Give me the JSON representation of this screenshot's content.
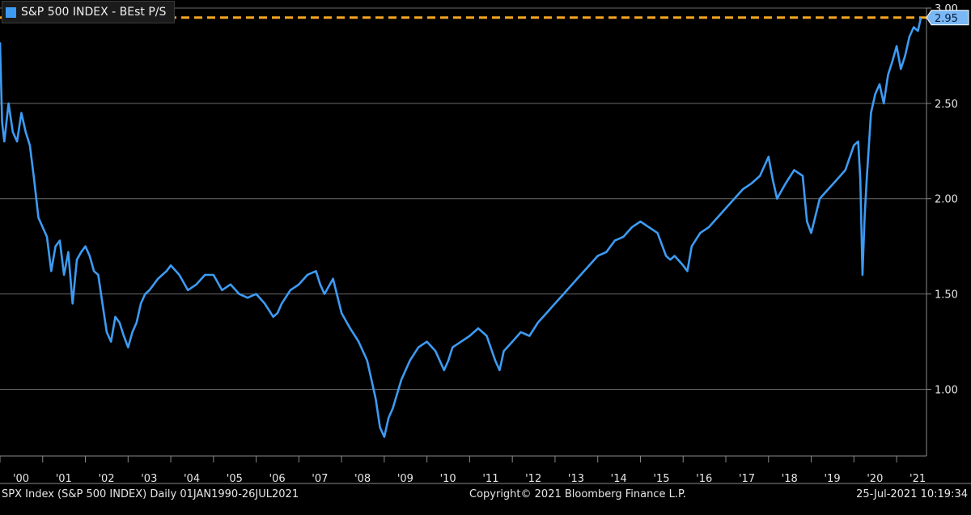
{
  "legend": {
    "label": "S&P 500 INDEX - BEst P/S"
  },
  "footer": {
    "left": "SPX Index (S&P 500 INDEX)  Daily 01JAN1990-26JUL2021",
    "center": "Copyright© 2021 Bloomberg Finance L.P.",
    "right": "25-Jul-2021 10:19:34"
  },
  "colors": {
    "series": "#3d9bf3",
    "reference_line": "#f5a623",
    "grid": "#6a6a6a",
    "background": "#000000"
  },
  "chart_data": {
    "type": "line",
    "title": "",
    "xlabel": "",
    "ylabel": "",
    "ylim": [
      0.65,
      3.0
    ],
    "xlim": [
      2000.0,
      2021.7
    ],
    "grid": true,
    "y_axis_side": "right",
    "yticks": [
      1.0,
      1.5,
      2.0,
      2.5,
      3.0
    ],
    "ytick_labels": [
      "1.00",
      "1.50",
      "2.00",
      "2.50",
      "3.00"
    ],
    "xticks": [
      2000,
      2001,
      2002,
      2003,
      2004,
      2005,
      2006,
      2007,
      2008,
      2009,
      2010,
      2011,
      2012,
      2013,
      2014,
      2015,
      2016,
      2017,
      2018,
      2019,
      2020,
      2021
    ],
    "xtick_labels": [
      "'00",
      "'01",
      "'02",
      "'03",
      "'04",
      "'05",
      "'06",
      "'07",
      "'08",
      "'09",
      "'10",
      "'11",
      "'12",
      "'13",
      "'14",
      "'15",
      "'16",
      "'17",
      "'18",
      "'19",
      "'20",
      "'21"
    ],
    "last_value_label": "2.95",
    "reference_line": {
      "value": 2.95,
      "style": "dashed"
    },
    "series": [
      {
        "name": "S&P 500 INDEX - BEst P/S",
        "x": [
          2000.0,
          2000.05,
          2000.1,
          2000.2,
          2000.3,
          2000.4,
          2000.5,
          2000.6,
          2000.7,
          2000.8,
          2000.9,
          2001.0,
          2001.1,
          2001.2,
          2001.3,
          2001.4,
          2001.5,
          2001.6,
          2001.7,
          2001.8,
          2001.9,
          2002.0,
          2002.1,
          2002.2,
          2002.3,
          2002.4,
          2002.5,
          2002.6,
          2002.7,
          2002.8,
          2002.9,
          2003.0,
          2003.1,
          2003.2,
          2003.3,
          2003.4,
          2003.5,
          2003.6,
          2003.7,
          2003.8,
          2003.9,
          2004.0,
          2004.2,
          2004.4,
          2004.6,
          2004.8,
          2005.0,
          2005.2,
          2005.4,
          2005.6,
          2005.8,
          2006.0,
          2006.2,
          2006.4,
          2006.5,
          2006.6,
          2006.8,
          2007.0,
          2007.2,
          2007.4,
          2007.5,
          2007.6,
          2007.8,
          2008.0,
          2008.2,
          2008.4,
          2008.6,
          2008.8,
          2008.9,
          2009.0,
          2009.1,
          2009.2,
          2009.4,
          2009.6,
          2009.8,
          2010.0,
          2010.2,
          2010.4,
          2010.5,
          2010.6,
          2010.8,
          2011.0,
          2011.2,
          2011.4,
          2011.6,
          2011.7,
          2011.8,
          2012.0,
          2012.2,
          2012.4,
          2012.6,
          2012.8,
          2013.0,
          2013.2,
          2013.4,
          2013.6,
          2013.8,
          2014.0,
          2014.2,
          2014.4,
          2014.6,
          2014.8,
          2015.0,
          2015.2,
          2015.4,
          2015.6,
          2015.7,
          2015.8,
          2016.0,
          2016.1,
          2016.2,
          2016.4,
          2016.6,
          2016.8,
          2017.0,
          2017.2,
          2017.4,
          2017.6,
          2017.8,
          2018.0,
          2018.1,
          2018.2,
          2018.4,
          2018.6,
          2018.8,
          2018.9,
          2019.0,
          2019.2,
          2019.4,
          2019.6,
          2019.8,
          2020.0,
          2020.1,
          2020.15,
          2020.2,
          2020.25,
          2020.3,
          2020.4,
          2020.5,
          2020.6,
          2020.7,
          2020.8,
          2020.9,
          2021.0,
          2021.1,
          2021.2,
          2021.3,
          2021.4,
          2021.5,
          2021.57
        ],
        "y": [
          2.82,
          2.4,
          2.3,
          2.5,
          2.35,
          2.3,
          2.45,
          2.35,
          2.28,
          2.1,
          1.9,
          1.85,
          1.8,
          1.62,
          1.75,
          1.78,
          1.6,
          1.72,
          1.45,
          1.68,
          1.72,
          1.75,
          1.7,
          1.62,
          1.6,
          1.45,
          1.3,
          1.25,
          1.38,
          1.35,
          1.28,
          1.22,
          1.3,
          1.35,
          1.45,
          1.5,
          1.52,
          1.55,
          1.58,
          1.6,
          1.62,
          1.65,
          1.6,
          1.52,
          1.55,
          1.6,
          1.6,
          1.52,
          1.55,
          1.5,
          1.48,
          1.5,
          1.45,
          1.38,
          1.4,
          1.45,
          1.52,
          1.55,
          1.6,
          1.62,
          1.55,
          1.5,
          1.58,
          1.4,
          1.32,
          1.25,
          1.15,
          0.95,
          0.8,
          0.75,
          0.85,
          0.9,
          1.05,
          1.15,
          1.22,
          1.25,
          1.2,
          1.1,
          1.15,
          1.22,
          1.25,
          1.28,
          1.32,
          1.28,
          1.15,
          1.1,
          1.2,
          1.25,
          1.3,
          1.28,
          1.35,
          1.4,
          1.45,
          1.5,
          1.55,
          1.6,
          1.65,
          1.7,
          1.72,
          1.78,
          1.8,
          1.85,
          1.88,
          1.85,
          1.82,
          1.7,
          1.68,
          1.7,
          1.65,
          1.62,
          1.75,
          1.82,
          1.85,
          1.9,
          1.95,
          2.0,
          2.05,
          2.08,
          2.12,
          2.22,
          2.1,
          2.0,
          2.08,
          2.15,
          2.12,
          1.88,
          1.82,
          2.0,
          2.05,
          2.1,
          2.15,
          2.28,
          2.3,
          2.1,
          1.6,
          1.9,
          2.1,
          2.45,
          2.55,
          2.6,
          2.5,
          2.65,
          2.72,
          2.8,
          2.68,
          2.75,
          2.85,
          2.9,
          2.88,
          2.95
        ]
      }
    ]
  }
}
